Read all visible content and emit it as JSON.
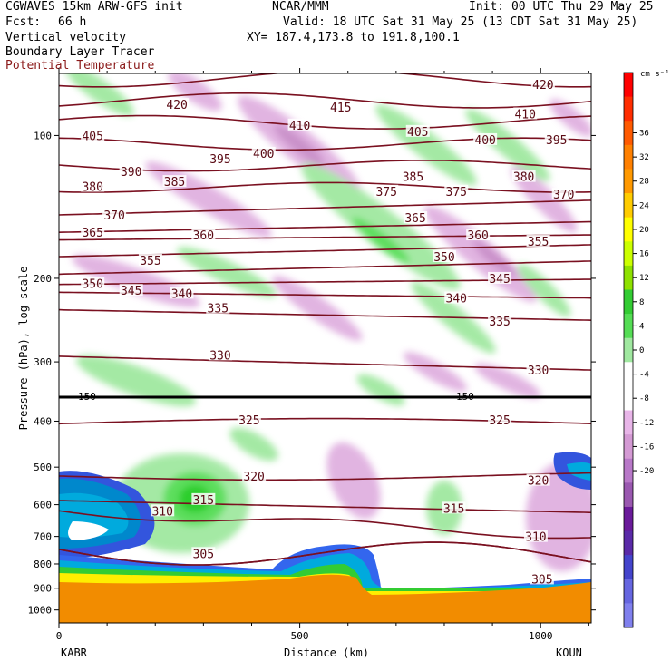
{
  "header": {
    "model": "CGWAVES 15km ARW-GFS init",
    "org": "NCAR/MMM",
    "init": "Init: 00 UTC Thu 29 May 25",
    "fcst_label": "Fcst:",
    "fcst_value": "66 h",
    "valid": "Valid: 18 UTC Sat 31 May 25 (13 CDT Sat 31 May 25)",
    "field1": "Vertical velocity",
    "xy": "XY= 187.4,173.8 to 191.8,100.1",
    "field2": "Boundary Layer Tracer",
    "field3": "Potential Temperature"
  },
  "colors": {
    "theta_line": "#7a1020",
    "field3_text": "#8b1a1a",
    "terrain": "#f28c00",
    "tropopause": "#000000"
  },
  "chart_data": {
    "type": "cross-section",
    "xlabel": "Distance (km)",
    "ylabel": "Pressure (hPa), log scale",
    "x_ticks": [
      0,
      500,
      1000
    ],
    "xlim": [
      0,
      1105
    ],
    "y_ticks": [
      100,
      200,
      300,
      400,
      500,
      600,
      700,
      800,
      900,
      1000
    ],
    "y_scale": "log",
    "left_station": "KABR",
    "right_station": "KOUN",
    "theta_labels": [
      {
        "v": "420",
        "d": 245,
        "p": 86
      },
      {
        "v": "410",
        "d": 500,
        "p": 95
      },
      {
        "v": "415",
        "d": 585,
        "p": 87
      },
      {
        "v": "420",
        "d": 1005,
        "p": 78
      },
      {
        "v": "405",
        "d": 70,
        "p": 100
      },
      {
        "v": "395",
        "d": 335,
        "p": 112
      },
      {
        "v": "400",
        "d": 425,
        "p": 109
      },
      {
        "v": "405",
        "d": 745,
        "p": 98
      },
      {
        "v": "400",
        "d": 885,
        "p": 102
      },
      {
        "v": "410",
        "d": 968,
        "p": 90
      },
      {
        "v": "395",
        "d": 1033,
        "p": 102
      },
      {
        "v": "380",
        "d": 70,
        "p": 128
      },
      {
        "v": "390",
        "d": 150,
        "p": 119
      },
      {
        "v": "385",
        "d": 240,
        "p": 125
      },
      {
        "v": "375",
        "d": 680,
        "p": 131
      },
      {
        "v": "385",
        "d": 735,
        "p": 122
      },
      {
        "v": "375",
        "d": 825,
        "p": 131
      },
      {
        "v": "380",
        "d": 965,
        "p": 122
      },
      {
        "v": "370",
        "d": 1048,
        "p": 133
      },
      {
        "v": "370",
        "d": 115,
        "p": 147
      },
      {
        "v": "365",
        "d": 70,
        "p": 160
      },
      {
        "v": "365",
        "d": 740,
        "p": 149
      },
      {
        "v": "360",
        "d": 300,
        "p": 162
      },
      {
        "v": "360",
        "d": 870,
        "p": 162
      },
      {
        "v": "355",
        "d": 190,
        "p": 183
      },
      {
        "v": "350",
        "d": 800,
        "p": 180
      },
      {
        "v": "355",
        "d": 995,
        "p": 167
      },
      {
        "v": "350",
        "d": 70,
        "p": 205
      },
      {
        "v": "345",
        "d": 150,
        "p": 212
      },
      {
        "v": "340",
        "d": 255,
        "p": 215
      },
      {
        "v": "345",
        "d": 915,
        "p": 200
      },
      {
        "v": "335",
        "d": 330,
        "p": 231
      },
      {
        "v": "340",
        "d": 825,
        "p": 220
      },
      {
        "v": "335",
        "d": 915,
        "p": 246
      },
      {
        "v": "330",
        "d": 335,
        "p": 290
      },
      {
        "v": "330",
        "d": 995,
        "p": 312
      },
      {
        "v": "325",
        "d": 395,
        "p": 397
      },
      {
        "v": "325",
        "d": 915,
        "p": 397
      },
      {
        "v": "320",
        "d": 405,
        "p": 522
      },
      {
        "v": "320",
        "d": 995,
        "p": 533
      },
      {
        "v": "315",
        "d": 300,
        "p": 585
      },
      {
        "v": "315",
        "d": 820,
        "p": 610
      },
      {
        "v": "310",
        "d": 215,
        "p": 618
      },
      {
        "v": "310",
        "d": 990,
        "p": 700
      },
      {
        "v": "305",
        "d": 300,
        "p": 760
      },
      {
        "v": "305",
        "d": 1003,
        "p": 860
      }
    ],
    "tropopause_label": "150",
    "tropopause_label2": "150",
    "colorbar_unit": "cm s⁻¹",
    "colorbar_ticks": [
      "36",
      "32",
      "28",
      "24",
      "20",
      "16",
      "12",
      "8",
      "4",
      "0",
      "-4",
      "-8",
      "-12",
      "-16",
      "-20"
    ],
    "colorbar_colors": [
      "#ff0000",
      "#ff2d00",
      "#ff5a00",
      "#ff8000",
      "#ff9900",
      "#ffcc00",
      "#ffff00",
      "#ccff00",
      "#8ee100",
      "#33cc33",
      "#55dd55",
      "#a0e8a0",
      "#ffffff",
      "#ffffff",
      "#e8b5e8",
      "#d49ad4",
      "#b878c8",
      "#9a58b0",
      "#6a1a9a",
      "#5a2aa8",
      "#4444cc",
      "#6666e0",
      "#8080ee"
    ]
  }
}
